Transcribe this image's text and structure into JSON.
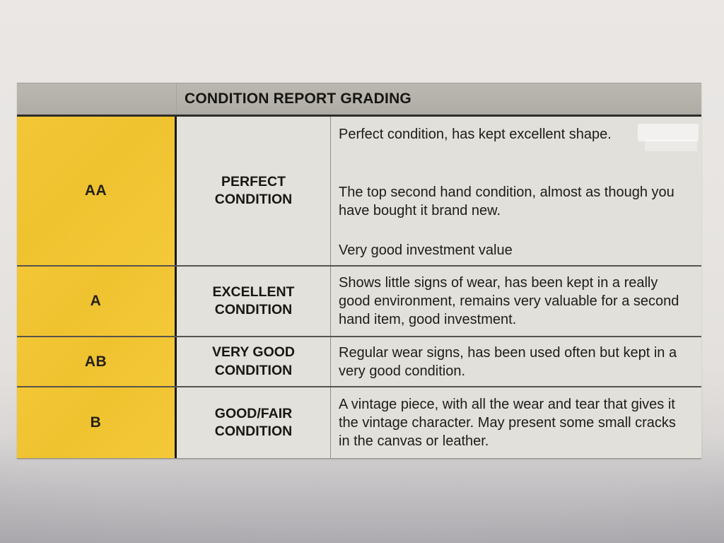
{
  "colors": {
    "grade_column_yellow": "#EFC332",
    "header_gray": "#B5B2AB",
    "cell_gray": "#E2E0DB",
    "paper": "#E7E4E2",
    "text": "#1D1C19"
  },
  "table": {
    "title": "CONDITION REPORT GRADING",
    "rows": [
      {
        "grade": "AA",
        "condition": "PERFECT CONDITION",
        "description": [
          "Perfect condition, has kept excellent shape.",
          "The top second hand condition, almost as though you have bought it brand new.",
          "Very good investment value"
        ]
      },
      {
        "grade": "A",
        "condition": "EXCELLENT CONDITION",
        "description": [
          "Shows little signs of wear, has been kept in a really good environment, remains very valuable for a second hand item, good investment."
        ]
      },
      {
        "grade": "AB",
        "condition": "VERY GOOD CONDITION",
        "description": [
          "Regular wear signs, has been used often but kept in a very good condition."
        ]
      },
      {
        "grade": "B",
        "condition": "GOOD/FAIR CONDITION",
        "description": [
          "A vintage piece, with all the wear and tear that gives it the vintage character. May present some small cracks in the canvas or leather."
        ]
      }
    ]
  }
}
